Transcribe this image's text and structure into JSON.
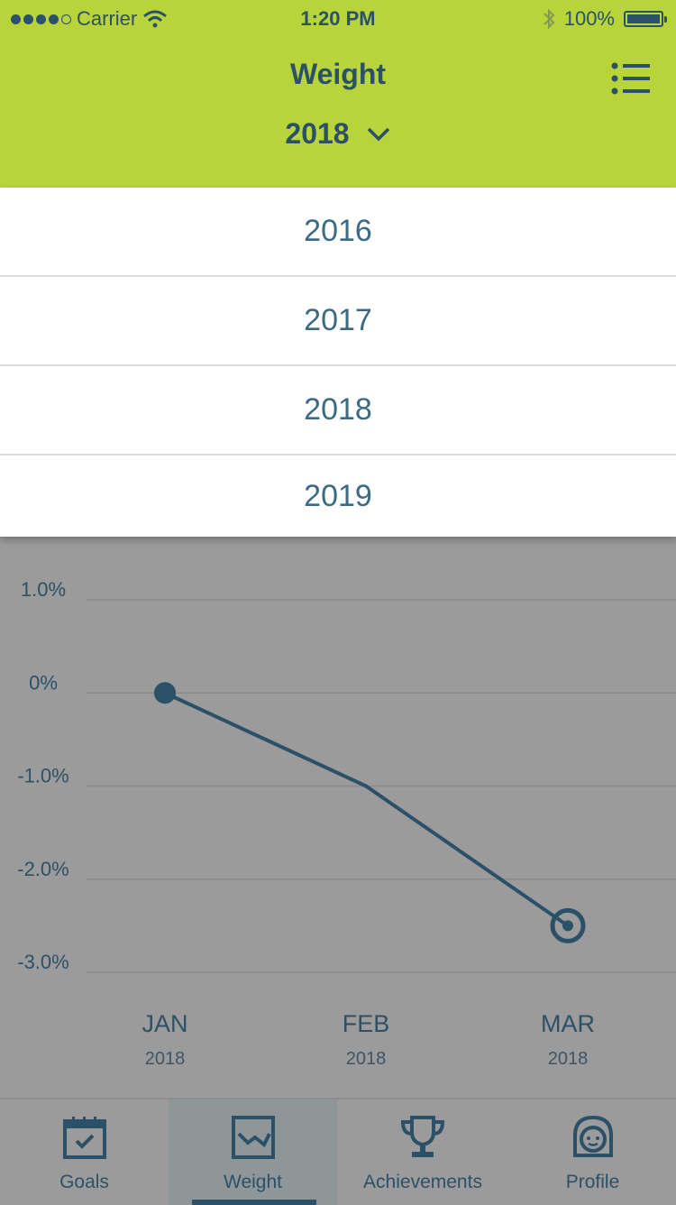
{
  "status_bar": {
    "carrier": "Carrier",
    "time": "1:20 PM",
    "battery": "100%"
  },
  "header": {
    "title": "Weight",
    "selected_year": "2018"
  },
  "year_options": [
    "2016",
    "2017",
    "2018",
    "2019"
  ],
  "chart_data": {
    "type": "line",
    "y_ticks": [
      "1.0%",
      "0%",
      "-1.0%",
      "-2.0%",
      "-3.0%"
    ],
    "ylim": [
      -3.0,
      1.0
    ],
    "categories": [
      {
        "month": "JAN",
        "year": "2018"
      },
      {
        "month": "FEB",
        "year": "2018"
      },
      {
        "month": "MAR",
        "year": "2018"
      }
    ],
    "values": [
      0,
      -1.0,
      -2.5
    ]
  },
  "tabs": [
    {
      "label": "Goals",
      "icon": "calendar-check-icon"
    },
    {
      "label": "Weight",
      "icon": "weight-chart-icon"
    },
    {
      "label": "Achievements",
      "icon": "trophy-icon"
    },
    {
      "label": "Profile",
      "icon": "face-icon"
    }
  ],
  "colors": {
    "accent": "#b8d43a",
    "primary": "#2b5168",
    "overlay": "#9b9b9b"
  }
}
